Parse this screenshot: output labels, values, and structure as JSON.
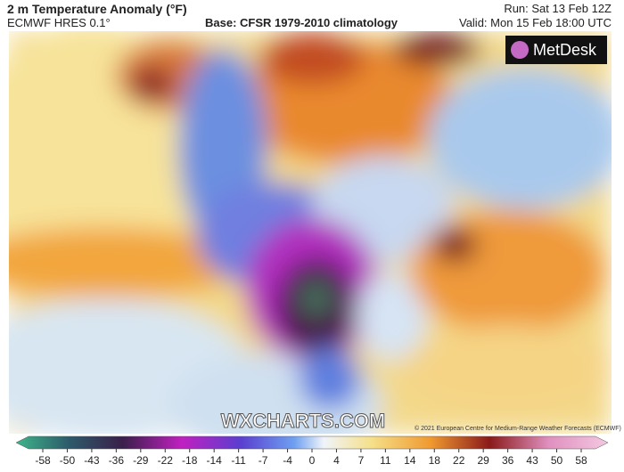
{
  "header": {
    "title": "2 m Temperature Anomaly (°F)",
    "model": "ECMWF HRES 0.1°",
    "base": "Base: CFSR 1979-2010 climatology",
    "run": "Run: Sat 13 Feb 12Z",
    "valid": "Valid: Mon 15 Feb 18:00 UTC"
  },
  "map": {
    "logo": "MetDesk",
    "watermark": "WXCHARTS.COM",
    "credit": "© 2021 European Centre for Medium-Range Weather Forecasts (ECMWF)"
  },
  "colorbar": {
    "ticks": [
      -58,
      -50,
      -43,
      -36,
      -29,
      -22,
      -18,
      -14,
      -11,
      -7,
      -4,
      0,
      4,
      7,
      11,
      14,
      18,
      22,
      29,
      36,
      43,
      50,
      58
    ]
  }
}
